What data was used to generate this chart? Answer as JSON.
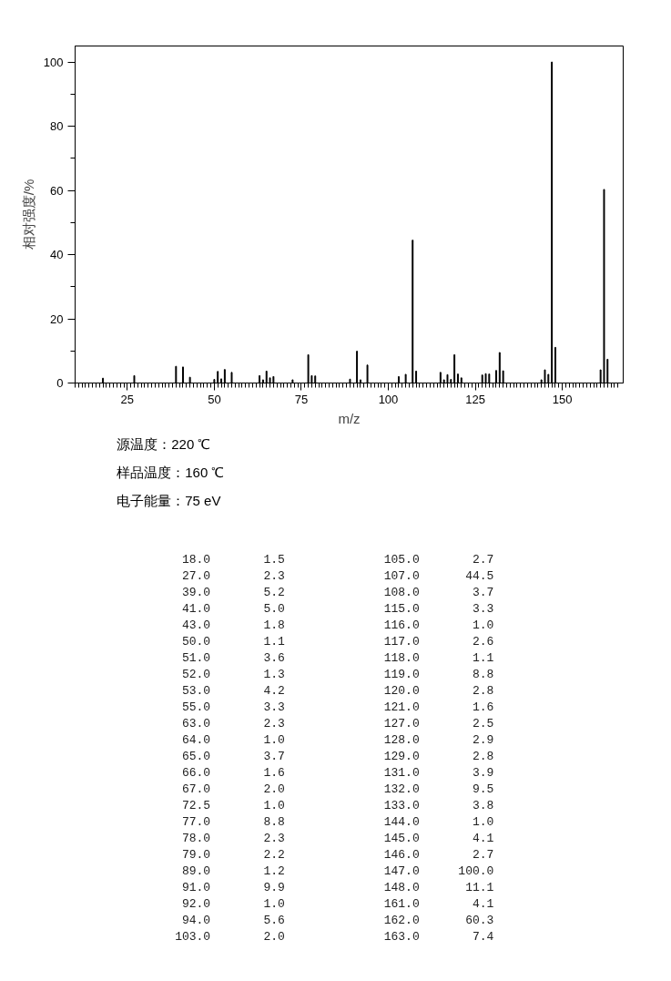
{
  "chart_data": [
    {
      "type": "bar",
      "xlabel": "m/z",
      "ylabel": "相对强度/%",
      "x": [
        18.0,
        27.0,
        39.0,
        41.0,
        43.0,
        50.0,
        51.0,
        52.0,
        53.0,
        55.0,
        63.0,
        64.0,
        65.0,
        66.0,
        67.0,
        72.5,
        77.0,
        78.0,
        79.0,
        89.0,
        91.0,
        92.0,
        94.0,
        103.0,
        105.0,
        107.0,
        108.0,
        115.0,
        116.0,
        117.0,
        118.0,
        119.0,
        120.0,
        121.0,
        127.0,
        128.0,
        129.0,
        131.0,
        132.0,
        133.0,
        144.0,
        145.0,
        146.0,
        147.0,
        148.0,
        161.0,
        162.0,
        163.0
      ],
      "values": [
        1.5,
        2.3,
        5.2,
        5.0,
        1.8,
        1.1,
        3.6,
        1.3,
        4.2,
        3.3,
        2.3,
        1.0,
        3.7,
        1.6,
        2.0,
        1.0,
        8.8,
        2.3,
        2.2,
        1.2,
        9.9,
        1.0,
        5.6,
        2.0,
        2.7,
        44.5,
        3.7,
        3.3,
        1.0,
        2.6,
        1.1,
        8.8,
        2.8,
        1.6,
        2.5,
        2.9,
        2.8,
        3.9,
        9.5,
        3.8,
        1.0,
        4.1,
        2.7,
        100.0,
        11.1,
        4.1,
        60.3,
        7.4
      ],
      "color": "#000000",
      "xlim": [
        10,
        167.5
      ],
      "xticks": [
        25,
        50,
        75,
        100,
        125,
        150
      ],
      "ylim": [
        0,
        105
      ],
      "yticks": [
        0,
        20,
        40,
        60,
        80,
        100
      ],
      "grid": false,
      "annotations": [
        "源温度：220 ℃",
        "样品温度：160 ℃",
        "电子能量：75 eV"
      ]
    },
    {
      "type": "other",
      "categories": [
        "18.0",
        "27.0",
        "39.0",
        "41.0",
        "43.0",
        "50.0",
        "51.0",
        "52.0",
        "53.0",
        "55.0",
        "63.0",
        "64.0",
        "65.0",
        "66.0",
        "67.0",
        "72.5",
        "77.0",
        "78.0",
        "79.0",
        "89.0",
        "91.0",
        "92.0",
        "94.0",
        "103.0",
        "105.0",
        "107.0",
        "108.0",
        "115.0",
        "116.0",
        "117.0",
        "118.0",
        "119.0",
        "120.0",
        "121.0",
        "127.0",
        "128.0",
        "129.0",
        "131.0",
        "132.0",
        "133.0",
        "144.0",
        "145.0",
        "146.0",
        "147.0",
        "148.0",
        "161.0",
        "162.0",
        "163.0"
      ],
      "values": [
        1.5,
        2.3,
        5.2,
        5.0,
        1.8,
        1.1,
        3.6,
        1.3,
        4.2,
        3.3,
        2.3,
        1.0,
        3.7,
        1.6,
        2.0,
        1.0,
        8.8,
        2.3,
        2.2,
        1.2,
        9.9,
        1.0,
        5.6,
        2.0,
        2.7,
        44.5,
        3.7,
        3.3,
        1.0,
        2.6,
        1.1,
        8.8,
        2.8,
        1.6,
        2.5,
        2.9,
        2.8,
        3.9,
        9.5,
        3.8,
        1.0,
        4.1,
        2.7,
        100.0,
        11.1,
        4.1,
        60.3,
        7.4
      ],
      "value_labels": [
        "1.5",
        "2.3",
        "5.2",
        "5.0",
        "1.8",
        "1.1",
        "3.6",
        "1.3",
        "4.2",
        "3.3",
        "2.3",
        "1.0",
        "3.7",
        "1.6",
        "2.0",
        "1.0",
        "8.8",
        "2.3",
        "2.2",
        "1.2",
        "9.9",
        "1.0",
        "5.6",
        "2.0",
        "2.7",
        "44.5",
        "3.7",
        "3.3",
        "1.0",
        "2.6",
        "1.1",
        "8.8",
        "2.8",
        "1.6",
        "2.5",
        "2.9",
        "2.8",
        "3.9",
        "9.5",
        "3.8",
        "1.0",
        "4.1",
        "2.7",
        "100.0",
        "11.1",
        "4.1",
        "60.3",
        "7.4"
      ]
    }
  ]
}
